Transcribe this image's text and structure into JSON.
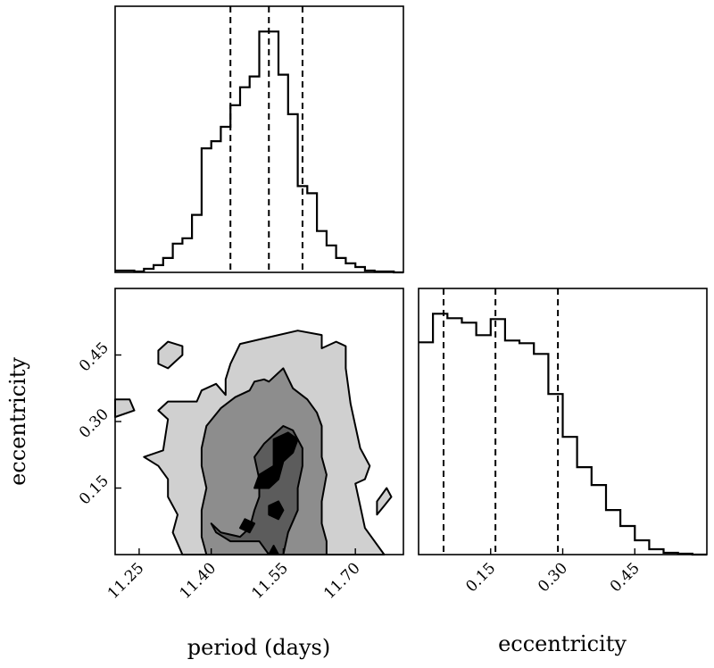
{
  "chart_data": [
    {
      "type": "histogram",
      "panel": "period-marginal",
      "xlim": [
        11.2,
        11.8
      ],
      "bin_edges": [
        11.2,
        11.22,
        11.24,
        11.26,
        11.28,
        11.3,
        11.32,
        11.34,
        11.36,
        11.38,
        11.4,
        11.42,
        11.44,
        11.46,
        11.48,
        11.5,
        11.52,
        11.54,
        11.56,
        11.58,
        11.6,
        11.62,
        11.64,
        11.66,
        11.68,
        11.7,
        11.72,
        11.74,
        11.76,
        11.78,
        11.8
      ],
      "counts": [
        2,
        2,
        1,
        4,
        8,
        16,
        32,
        38,
        64,
        138,
        146,
        162,
        186,
        206,
        218,
        268,
        268,
        220,
        176,
        96,
        88,
        46,
        30,
        16,
        10,
        6,
        2,
        1,
        1,
        0
      ],
      "quantiles": [
        11.44,
        11.52,
        11.59
      ]
    },
    {
      "type": "histogram",
      "panel": "eccentricity-marginal",
      "xlim": [
        0.0,
        0.6
      ],
      "xticks": [
        "0.15",
        "0.30",
        "0.45"
      ],
      "xlabel": "eccentricity",
      "bin_edges": [
        0.0,
        0.03,
        0.06,
        0.09,
        0.12,
        0.15,
        0.18,
        0.21,
        0.24,
        0.27,
        0.3,
        0.33,
        0.36,
        0.39,
        0.42,
        0.45,
        0.48,
        0.51,
        0.54,
        0.57,
        0.6
      ],
      "counts": [
        238,
        270,
        265,
        260,
        246,
        264,
        240,
        237,
        225,
        180,
        132,
        98,
        78,
        50,
        32,
        16,
        6,
        2,
        1,
        0
      ],
      "quantiles": [
        0.052,
        0.16,
        0.29
      ]
    },
    {
      "type": "contour",
      "panel": "joint",
      "xlim": [
        11.2,
        11.8
      ],
      "ylim": [
        0.0,
        0.6
      ],
      "xticks": [
        "11.25",
        "11.40",
        "11.55",
        "11.70"
      ],
      "yticks": [
        "0.15",
        "0.30",
        "0.45"
      ],
      "xlabel": "period (days)",
      "ylabel": "eccentricity",
      "levels": [
        {
          "fill": "#d0d0d0",
          "regions": [
            [
              [
                11.34,
                0
              ],
              [
                11.32,
                0.05
              ],
              [
                11.33,
                0.09
              ],
              [
                11.31,
                0.13
              ],
              [
                11.31,
                0.17
              ],
              [
                11.29,
                0.2
              ],
              [
                11.26,
                0.22
              ],
              [
                11.3,
                0.235
              ],
              [
                11.305,
                0.27
              ],
              [
                11.31,
                0.305
              ],
              [
                11.29,
                0.325
              ],
              [
                11.31,
                0.345
              ],
              [
                11.37,
                0.345
              ],
              [
                11.38,
                0.37
              ],
              [
                11.41,
                0.385
              ],
              [
                11.43,
                0.36
              ],
              [
                11.43,
                0.395
              ],
              [
                11.44,
                0.43
              ],
              [
                11.46,
                0.475
              ],
              [
                11.52,
                0.49
              ],
              [
                11.58,
                0.505
              ],
              [
                11.63,
                0.495
              ],
              [
                11.63,
                0.465
              ],
              [
                11.66,
                0.48
              ],
              [
                11.68,
                0.47
              ],
              [
                11.68,
                0.42
              ],
              [
                11.69,
                0.34
              ],
              [
                11.7,
                0.29
              ],
              [
                11.71,
                0.24
              ],
              [
                11.73,
                0.2
              ],
              [
                11.72,
                0.17
              ],
              [
                11.7,
                0.16
              ],
              [
                11.71,
                0.11
              ],
              [
                11.72,
                0.06
              ],
              [
                11.76,
                0
              ],
              [
                11.7,
                0
              ]
            ]
          ],
          "holes": [
            [
              [
                11.2,
                0.35
              ],
              [
                11.23,
                0.35
              ],
              [
                11.24,
                0.325
              ],
              [
                11.2,
                0.31
              ]
            ],
            [
              [
                11.29,
                0.43
              ],
              [
                11.31,
                0.42
              ],
              [
                11.34,
                0.45
              ],
              [
                11.34,
                0.47
              ],
              [
                11.31,
                0.48
              ],
              [
                11.29,
                0.46
              ]
            ],
            [
              [
                11.745,
                0.09
              ],
              [
                11.76,
                0.11
              ],
              [
                11.775,
                0.13
              ],
              [
                11.765,
                0.15
              ],
              [
                11.745,
                0.12
              ]
            ]
          ]
        },
        {
          "fill": "#8d8d8d",
          "regions": [
            [
              [
                11.39,
                0
              ],
              [
                11.38,
                0.04
              ],
              [
                11.38,
                0.1
              ],
              [
                11.39,
                0.15
              ],
              [
                11.38,
                0.2
              ],
              [
                11.38,
                0.24
              ],
              [
                11.39,
                0.29
              ],
              [
                11.42,
                0.33
              ],
              [
                11.45,
                0.355
              ],
              [
                11.48,
                0.37
              ],
              [
                11.49,
                0.39
              ],
              [
                11.51,
                0.395
              ],
              [
                11.52,
                0.39
              ],
              [
                11.55,
                0.42
              ],
              [
                11.57,
                0.375
              ],
              [
                11.6,
                0.35
              ],
              [
                11.62,
                0.32
              ],
              [
                11.63,
                0.29
              ],
              [
                11.63,
                0.22
              ],
              [
                11.64,
                0.18
              ],
              [
                11.63,
                0.12
              ],
              [
                11.63,
                0.07
              ],
              [
                11.64,
                0.03
              ],
              [
                11.64,
                0
              ]
            ]
          ],
          "holes": []
        },
        {
          "fill": "#5c5c5c",
          "regions": [
            [
              [
                11.4,
                0.07
              ],
              [
                11.42,
                0.05
              ],
              [
                11.46,
                0.04
              ],
              [
                11.48,
                0.06
              ],
              [
                11.49,
                0.1
              ],
              [
                11.5,
                0.13
              ],
              [
                11.5,
                0.17
              ],
              [
                11.49,
                0.22
              ],
              [
                11.51,
                0.25
              ],
              [
                11.53,
                0.27
              ],
              [
                11.55,
                0.29
              ],
              [
                11.57,
                0.28
              ],
              [
                11.59,
                0.24
              ],
              [
                11.59,
                0.2
              ],
              [
                11.58,
                0.15
              ],
              [
                11.58,
                0.1
              ],
              [
                11.56,
                0.05
              ],
              [
                11.55,
                0
              ],
              [
                11.52,
                0
              ],
              [
                11.5,
                0.03
              ],
              [
                11.47,
                0.03
              ],
              [
                11.44,
                0.03
              ],
              [
                11.41,
                0.05
              ]
            ]
          ],
          "holes": []
        },
        {
          "fill": "#000000",
          "regions": [
            [
              [
                11.53,
                0.26
              ],
              [
                11.56,
                0.275
              ],
              [
                11.58,
                0.26
              ],
              [
                11.57,
                0.23
              ],
              [
                11.55,
                0.21
              ],
              [
                11.54,
                0.17
              ],
              [
                11.52,
                0.15
              ],
              [
                11.49,
                0.15
              ],
              [
                11.5,
                0.18
              ],
              [
                11.53,
                0.2
              ],
              [
                11.53,
                0.23
              ]
            ],
            [
              [
                11.52,
                0.09
              ],
              [
                11.54,
                0.08
              ],
              [
                11.55,
                0.1
              ],
              [
                11.54,
                0.12
              ],
              [
                11.52,
                0.11
              ]
            ],
            [
              [
                11.46,
                0.06
              ],
              [
                11.48,
                0.05
              ],
              [
                11.49,
                0.07
              ],
              [
                11.47,
                0.08
              ]
            ],
            [
              [
                11.52,
                0.0
              ],
              [
                11.54,
                0.0
              ],
              [
                11.53,
                0.02
              ]
            ]
          ],
          "holes": []
        }
      ]
    }
  ]
}
